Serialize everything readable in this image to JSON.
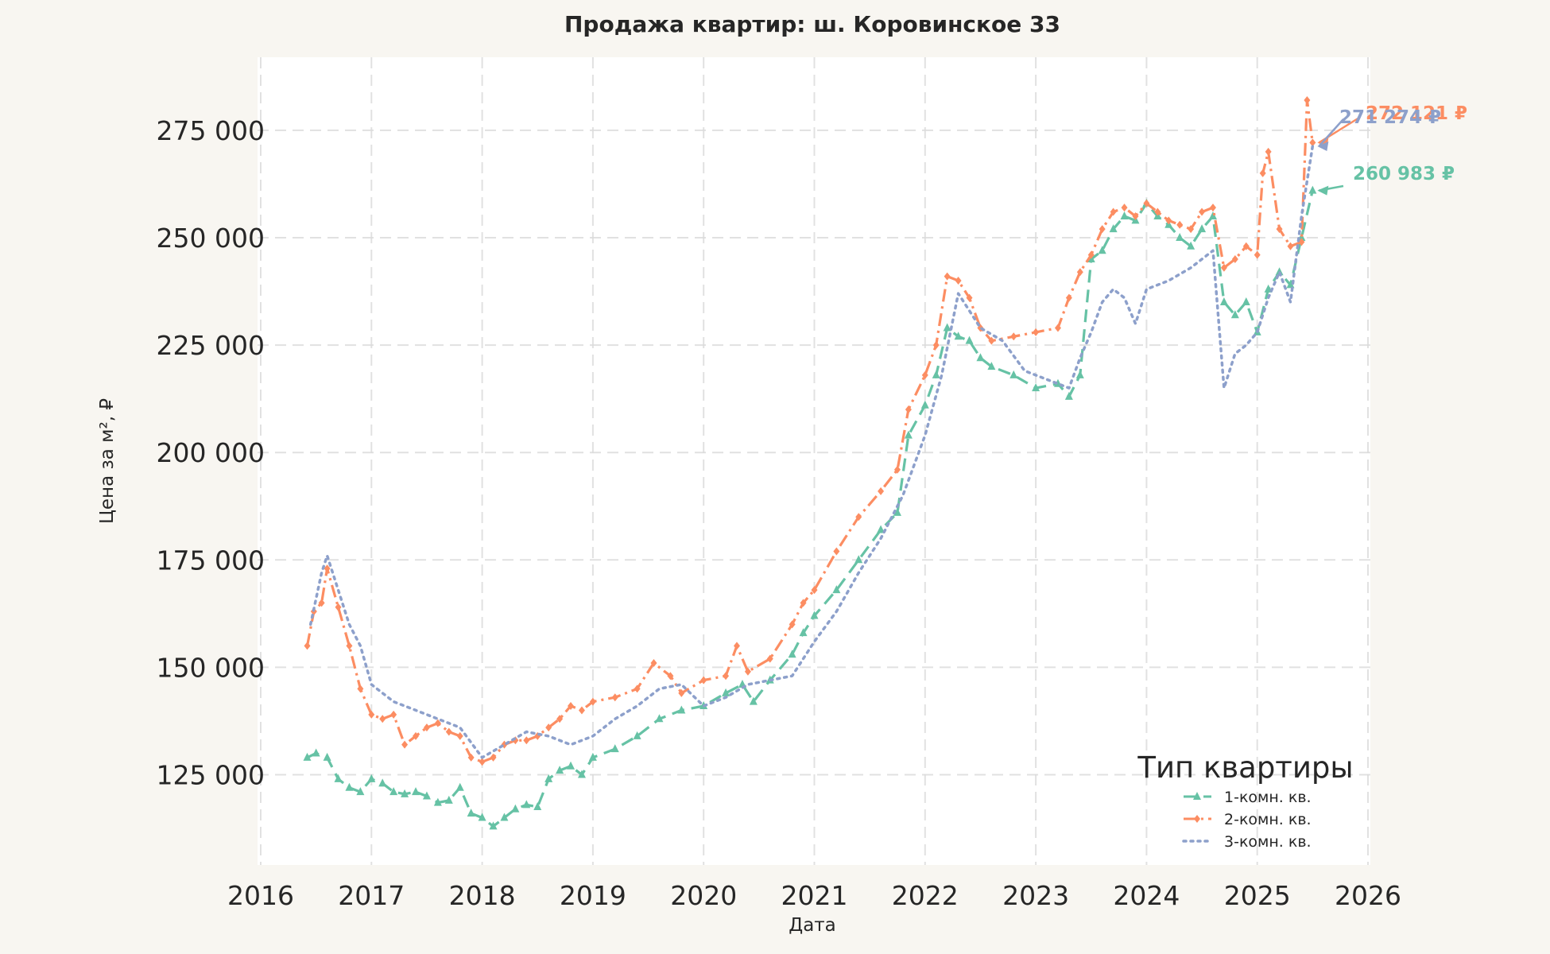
{
  "chart_data": {
    "type": "line",
    "title": "Продажа квартир: ш. Коровинское 33",
    "xlabel": "Дата",
    "ylabel": "Цена за м², ₽",
    "xlim": [
      2016.0,
      2026.0
    ],
    "ylim": [
      104000,
      292000
    ],
    "x_ticks": [
      "2016",
      "2017",
      "2018",
      "2019",
      "2020",
      "2021",
      "2022",
      "2023",
      "2024",
      "2025",
      "2026"
    ],
    "y_ticks": [
      {
        "value": 125000,
        "label": "125 000"
      },
      {
        "value": 150000,
        "label": "150 000"
      },
      {
        "value": 175000,
        "label": "175 000"
      },
      {
        "value": 200000,
        "label": "200 000"
      },
      {
        "value": 225000,
        "label": "225 000"
      },
      {
        "value": 250000,
        "label": "250 000"
      },
      {
        "value": 275000,
        "label": "275 000"
      }
    ],
    "grid": true,
    "legend": {
      "title": "Тип квартиры",
      "position": "bottom-right"
    },
    "series": [
      {
        "name": "1-комн. кв.",
        "color": "#66c2a5",
        "line_style": "dashed",
        "marker": "triangle",
        "end_label": "260 983 ₽",
        "x": [
          2016.42,
          2016.5,
          2016.6,
          2016.7,
          2016.8,
          2016.9,
          2017.0,
          2017.1,
          2017.2,
          2017.3,
          2017.4,
          2017.5,
          2017.6,
          2017.7,
          2017.8,
          2017.9,
          2018.0,
          2018.1,
          2018.2,
          2018.3,
          2018.4,
          2018.5,
          2018.6,
          2018.7,
          2018.8,
          2018.9,
          2019.0,
          2019.2,
          2019.4,
          2019.6,
          2019.8,
          2020.0,
          2020.2,
          2020.35,
          2020.45,
          2020.6,
          2020.8,
          2020.9,
          2021.0,
          2021.2,
          2021.4,
          2021.6,
          2021.75,
          2021.85,
          2022.0,
          2022.1,
          2022.2,
          2022.3,
          2022.4,
          2022.5,
          2022.6,
          2022.8,
          2023.0,
          2023.2,
          2023.3,
          2023.4,
          2023.5,
          2023.6,
          2023.7,
          2023.8,
          2023.9,
          2024.0,
          2024.1,
          2024.2,
          2024.3,
          2024.4,
          2024.5,
          2024.6,
          2024.7,
          2024.8,
          2024.9,
          2025.0,
          2025.1,
          2025.2,
          2025.3,
          2025.4,
          2025.5
        ],
        "y": [
          129000,
          130000,
          129000,
          124000,
          122000,
          121000,
          124000,
          123000,
          121000,
          120500,
          121000,
          120000,
          118500,
          119000,
          122000,
          116000,
          115000,
          113000,
          115000,
          117000,
          118000,
          117500,
          124000,
          126000,
          127000,
          125000,
          129000,
          131000,
          134000,
          138000,
          140000,
          141000,
          144000,
          146000,
          142000,
          147000,
          153000,
          158000,
          162000,
          168000,
          175000,
          182000,
          186000,
          204000,
          211000,
          218000,
          229000,
          227000,
          226000,
          222000,
          220000,
          218000,
          215000,
          216000,
          213000,
          218000,
          245000,
          247000,
          252000,
          255000,
          254000,
          258000,
          255000,
          253000,
          250000,
          248000,
          252000,
          255000,
          235000,
          232000,
          235000,
          228000,
          238000,
          242000,
          239000,
          250000,
          260983
        ]
      },
      {
        "name": "2-комн. кв.",
        "color": "#fc8d62",
        "line_style": "dashdot",
        "marker": "diamond",
        "end_label": "272 121 ₽",
        "x": [
          2016.42,
          2016.48,
          2016.55,
          2016.6,
          2016.7,
          2016.8,
          2016.9,
          2017.0,
          2017.1,
          2017.2,
          2017.3,
          2017.4,
          2017.5,
          2017.6,
          2017.7,
          2017.8,
          2017.9,
          2018.0,
          2018.1,
          2018.2,
          2018.3,
          2018.4,
          2018.5,
          2018.6,
          2018.7,
          2018.8,
          2018.9,
          2019.0,
          2019.2,
          2019.4,
          2019.55,
          2019.7,
          2019.8,
          2020.0,
          2020.2,
          2020.3,
          2020.4,
          2020.6,
          2020.8,
          2020.9,
          2021.0,
          2021.2,
          2021.4,
          2021.6,
          2021.75,
          2021.85,
          2022.0,
          2022.1,
          2022.2,
          2022.3,
          2022.4,
          2022.5,
          2022.6,
          2022.8,
          2023.0,
          2023.2,
          2023.3,
          2023.4,
          2023.5,
          2023.6,
          2023.7,
          2023.8,
          2023.9,
          2024.0,
          2024.1,
          2024.2,
          2024.3,
          2024.4,
          2024.5,
          2024.6,
          2024.7,
          2024.8,
          2024.9,
          2025.0,
          2025.05,
          2025.1,
          2025.2,
          2025.3,
          2025.4,
          2025.45,
          2025.5
        ],
        "y": [
          155000,
          163000,
          165000,
          173000,
          164000,
          155000,
          145000,
          139000,
          138000,
          139000,
          132000,
          134000,
          136000,
          137000,
          135000,
          134000,
          129000,
          128000,
          129000,
          132000,
          133000,
          133000,
          134000,
          136000,
          138000,
          141000,
          140000,
          142000,
          143000,
          145000,
          151000,
          148000,
          144000,
          147000,
          148000,
          155000,
          149000,
          152000,
          160000,
          165000,
          168000,
          177000,
          185000,
          191000,
          196000,
          210000,
          218000,
          225000,
          241000,
          240000,
          236000,
          229000,
          226000,
          227000,
          228000,
          229000,
          236000,
          242000,
          246000,
          252000,
          256000,
          257000,
          255000,
          258000,
          256000,
          254000,
          253000,
          252000,
          256000,
          257000,
          243000,
          245000,
          248000,
          246000,
          265000,
          270000,
          252000,
          248000,
          249000,
          282000,
          272121
        ]
      },
      {
        "name": "3-комн. кв.",
        "color": "#8da0cb",
        "line_style": "dotted",
        "marker": "none",
        "end_label": "271 274 ₽",
        "x": [
          2016.45,
          2016.55,
          2016.6,
          2016.7,
          2016.8,
          2016.9,
          2017.0,
          2017.2,
          2017.4,
          2017.6,
          2017.8,
          2018.0,
          2018.2,
          2018.4,
          2018.6,
          2018.8,
          2019.0,
          2019.2,
          2019.4,
          2019.6,
          2019.8,
          2020.0,
          2020.2,
          2020.4,
          2020.6,
          2020.8,
          2021.0,
          2021.2,
          2021.4,
          2021.6,
          2021.8,
          2022.0,
          2022.15,
          2022.3,
          2022.5,
          2022.7,
          2022.9,
          2023.1,
          2023.3,
          2023.4,
          2023.5,
          2023.6,
          2023.7,
          2023.8,
          2023.9,
          2024.0,
          2024.2,
          2024.4,
          2024.6,
          2024.7,
          2024.8,
          2024.9,
          2025.0,
          2025.1,
          2025.2,
          2025.3,
          2025.4,
          2025.5
        ],
        "y": [
          160000,
          172000,
          176000,
          168000,
          160000,
          155000,
          146000,
          142000,
          140000,
          138000,
          136000,
          129000,
          132000,
          135000,
          134000,
          132000,
          134000,
          138000,
          141000,
          145000,
          146000,
          141000,
          143000,
          146000,
          147000,
          148000,
          156000,
          163000,
          172000,
          180000,
          190000,
          204000,
          218000,
          237000,
          229000,
          226000,
          219000,
          217000,
          215000,
          222000,
          228000,
          235000,
          238000,
          236000,
          230000,
          238000,
          240000,
          243000,
          247000,
          215000,
          223000,
          225000,
          228000,
          236000,
          242000,
          235000,
          255000,
          271274
        ]
      }
    ]
  }
}
